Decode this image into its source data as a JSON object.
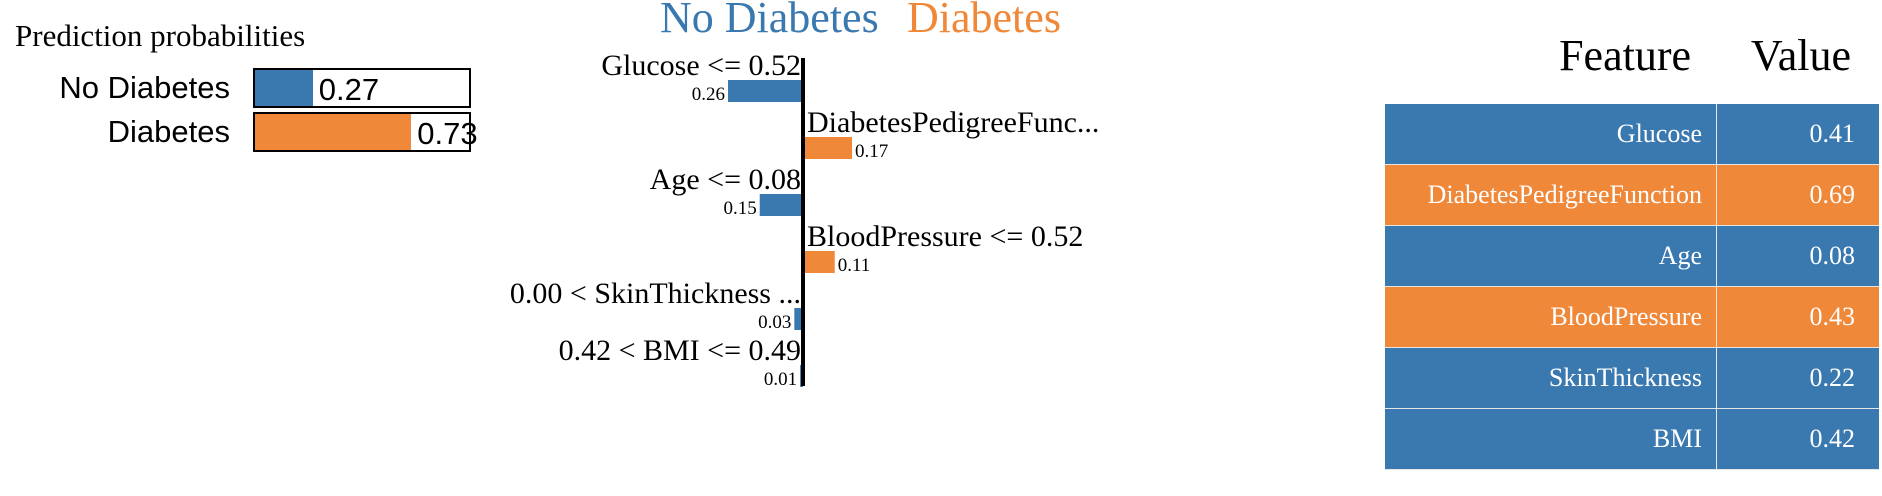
{
  "colors": {
    "no_diabetes": "#3a78b0",
    "diabetes": "#f0883a"
  },
  "prediction": {
    "title": "Prediction probabilities",
    "rows": [
      {
        "label": "No Diabetes",
        "value": 0.27,
        "value_text": "0.27",
        "color": "#3a78b0"
      },
      {
        "label": "Diabetes",
        "value": 0.73,
        "value_text": "0.73",
        "color": "#f0883a"
      }
    ]
  },
  "chart_data": {
    "type": "bar",
    "orientation": "horizontal-diverging",
    "class_titles": {
      "left": "No Diabetes",
      "right": "Diabetes"
    },
    "max_abs": 0.26,
    "bars": [
      {
        "label": "Glucose <= 0.52",
        "value": 0.26,
        "value_text": "0.26",
        "side": "left"
      },
      {
        "label": "DiabetesPedigreeFunc...",
        "value": 0.17,
        "value_text": "0.17",
        "side": "right"
      },
      {
        "label": "Age <= 0.08",
        "value": 0.15,
        "value_text": "0.15",
        "side": "left"
      },
      {
        "label": "BloodPressure <= 0.52",
        "value": 0.11,
        "value_text": "0.11",
        "side": "right"
      },
      {
        "label": "0.00 < SkinThickness ...",
        "value": 0.03,
        "value_text": "0.03",
        "side": "left"
      },
      {
        "label": "0.42 < BMI <= 0.49",
        "value": 0.01,
        "value_text": "0.01",
        "side": "left"
      }
    ]
  },
  "table": {
    "headers": {
      "feature": "Feature",
      "value": "Value"
    },
    "rows": [
      {
        "feature": "Glucose",
        "value": "0.41",
        "color": "#3a78b0"
      },
      {
        "feature": "DiabetesPedigreeFunction",
        "value": "0.69",
        "color": "#f0883a"
      },
      {
        "feature": "Age",
        "value": "0.08",
        "color": "#3a78b0"
      },
      {
        "feature": "BloodPressure",
        "value": "0.43",
        "color": "#f0883a"
      },
      {
        "feature": "SkinThickness",
        "value": "0.22",
        "color": "#3a78b0"
      },
      {
        "feature": "BMI",
        "value": "0.42",
        "color": "#3a78b0"
      }
    ]
  }
}
